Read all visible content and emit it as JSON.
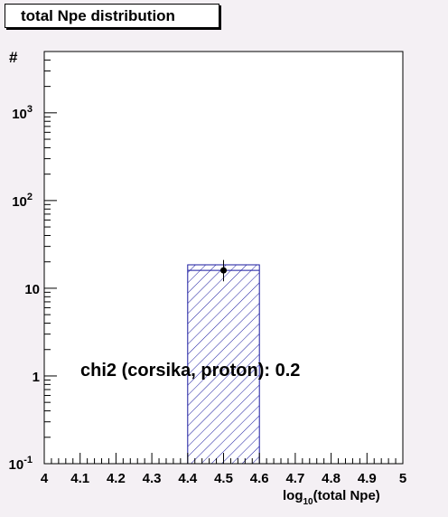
{
  "title": "total Npe distribution",
  "chart_data": {
    "type": "bar",
    "title": "total Npe distribution",
    "xlabel": "log10(total Npe)",
    "xlabel_main": "log",
    "xlabel_sub": "10",
    "xlabel_rest": "(total Npe)",
    "ylabel": "#",
    "xlim": [
      4,
      5
    ],
    "ylim": [
      0.1,
      5000
    ],
    "yscale": "log",
    "x_ticks": [
      "4",
      "4.1",
      "4.2",
      "4.3",
      "4.4",
      "4.5",
      "4.6",
      "4.7",
      "4.8",
      "4.9",
      "5"
    ],
    "y_ticks": [
      {
        "base": "10",
        "exp": "-1",
        "value": 0.1
      },
      {
        "base": "1",
        "exp": "",
        "value": 1
      },
      {
        "base": "10",
        "exp": "",
        "value": 10
      },
      {
        "base": "10",
        "exp": "2",
        "value": 100
      },
      {
        "base": "10",
        "exp": "3",
        "value": 1000
      }
    ],
    "bars": [
      {
        "x0": 4.4,
        "x1": 4.6,
        "value": 18.5
      }
    ],
    "points": [
      {
        "x": 4.5,
        "y": 16,
        "yerr_low": 12,
        "yerr_high": 21
      }
    ],
    "annotation": "chi2 (corsika, proton): 0.2",
    "colors": {
      "bar": "#1a1aa0",
      "frame": "#000000",
      "background": "#ffffff"
    }
  }
}
